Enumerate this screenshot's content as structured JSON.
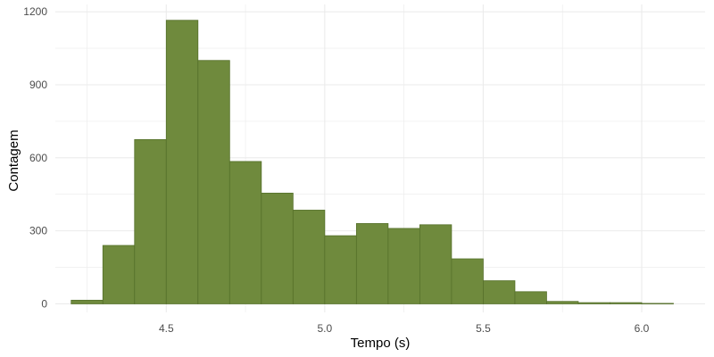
{
  "chart_data": {
    "type": "bar",
    "subtype": "histogram",
    "xlabel": "Tempo (s)",
    "ylabel": "Contagem",
    "xlim": [
      4.15,
      6.2
    ],
    "ylim": [
      -35,
      1230
    ],
    "x_ticks": [
      4.5,
      5.0,
      5.5,
      6.0
    ],
    "x_tick_labels": [
      "4.5",
      "5.0",
      "5.5",
      "6.0"
    ],
    "y_ticks": [
      0,
      300,
      600,
      900,
      1200
    ],
    "y_tick_labels": [
      "0",
      "300",
      "600",
      "900",
      "1200"
    ],
    "grid": true,
    "bin_edges": [
      4.2,
      4.3,
      4.4,
      4.5,
      4.6,
      4.7,
      4.8,
      4.9,
      5.0,
      5.1,
      5.2,
      5.3,
      5.4,
      5.5,
      5.6,
      5.7,
      5.8,
      5.9,
      6.0,
      6.1
    ],
    "values": [
      15,
      240,
      675,
      1165,
      1000,
      585,
      455,
      385,
      280,
      330,
      310,
      325,
      185,
      95,
      50,
      10,
      5,
      5,
      2
    ],
    "colors": {
      "fill": "#6f8a3d",
      "stroke": "#55702a",
      "grid": "#ebebeb",
      "background": "#ffffff"
    }
  }
}
